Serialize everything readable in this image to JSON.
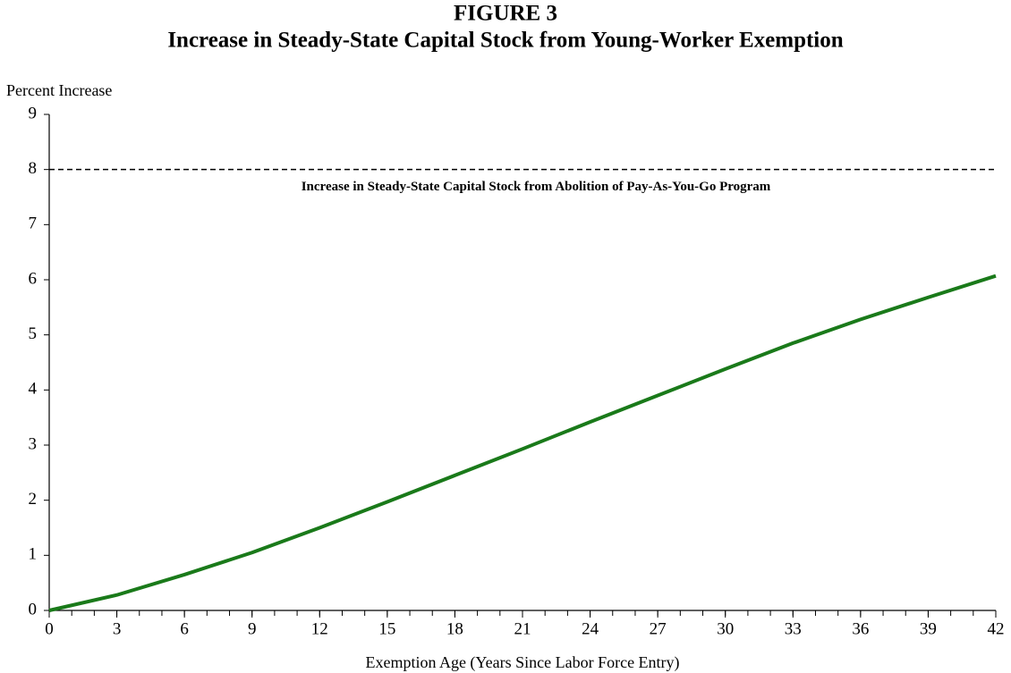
{
  "chart_data": {
    "type": "line",
    "title": "FIGURE 3",
    "subtitle": "Increase in Steady-State Capital Stock from Young-Worker Exemption",
    "y_label": "Percent Increase",
    "x_label": "Exemption Age (Years Since Labor Force Entry)",
    "x": [
      0,
      3,
      6,
      9,
      12,
      15,
      18,
      21,
      24,
      27,
      30,
      33,
      36,
      39,
      42
    ],
    "series": [
      {
        "name": "Young-Worker Exemption",
        "color": "#1a7a1a",
        "values": [
          0,
          0.28,
          0.65,
          1.05,
          1.5,
          1.97,
          2.45,
          2.93,
          3.42,
          3.9,
          4.38,
          4.85,
          5.28,
          5.68,
          6.07
        ]
      }
    ],
    "reference_line": {
      "value": 8,
      "label": "Increase in Steady-State Capital Stock from Abolition of Pay-As-You-Go Program"
    },
    "xlim": [
      0,
      42
    ],
    "ylim": [
      0,
      9
    ],
    "xticks": [
      0,
      3,
      6,
      9,
      12,
      15,
      18,
      21,
      24,
      27,
      30,
      33,
      36,
      39,
      42
    ],
    "xminorticks": [
      0,
      1,
      2,
      3,
      4,
      5,
      6,
      7,
      8,
      9,
      10,
      11,
      12,
      13,
      14,
      15,
      16,
      17,
      18,
      19,
      20,
      21,
      22,
      23,
      24,
      25,
      26,
      27,
      28,
      29,
      30,
      31,
      32,
      33,
      34,
      35,
      36,
      37,
      38,
      39,
      40,
      41,
      42
    ],
    "yticks": [
      0,
      1,
      2,
      3,
      4,
      5,
      6,
      7,
      8,
      9
    ],
    "grid": false
  }
}
